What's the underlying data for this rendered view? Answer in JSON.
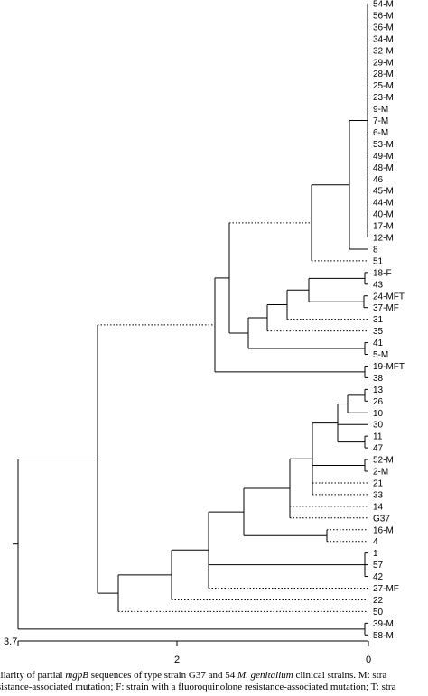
{
  "leaves": [
    "54-M",
    "56-M",
    "36-M",
    "34-M",
    "32-M",
    "29-M",
    "28-M",
    "25-M",
    "23-M",
    "9-M",
    "7-M",
    "6-M",
    "53-M",
    "49-M",
    "48-M",
    "46",
    "45-M",
    "44-M",
    "40-M",
    "17-M",
    "12-M",
    "8",
    "51",
    "18-F",
    "43",
    "24-MFT",
    "37-MF",
    "31",
    "35",
    "41",
    "5-M",
    "19-MFT",
    "38",
    "13",
    "26",
    "10",
    "30",
    "11",
    "47",
    "52-M",
    "2-M",
    "21",
    "33",
    "14",
    "G37",
    "16-M",
    "4",
    "1",
    "57",
    "42",
    "27-MF",
    "22",
    "50",
    "39-M",
    "58-M"
  ],
  "axis": {
    "ticks": [
      "3.7",
      "2",
      "0"
    ]
  },
  "caption": {
    "line1_pre": "milarity of partial ",
    "line1_gene": "mgpB",
    "line1_mid": " sequences of type strain G37 and 54 ",
    "line1_species": "M. genitalium",
    "line1_post": " clinical strains.  M: stra",
    "line2": "esistance-associated mutation; F: strain with a fluoroquinolone resistance-associated mutation; T: stra"
  }
}
